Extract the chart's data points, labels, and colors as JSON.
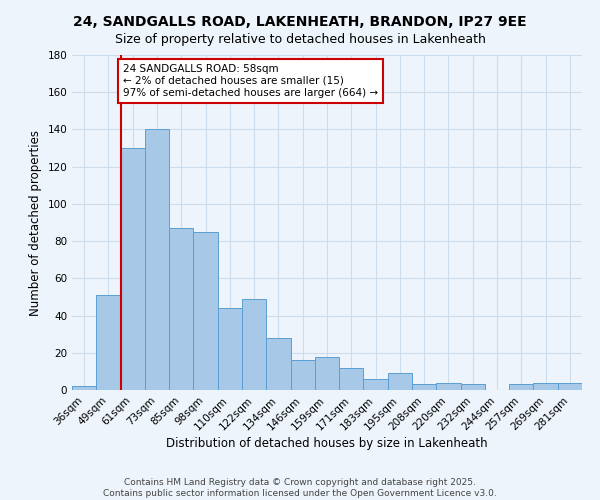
{
  "title": "24, SANDGALLS ROAD, LAKENHEATH, BRANDON, IP27 9EE",
  "subtitle": "Size of property relative to detached houses in Lakenheath",
  "xlabel": "Distribution of detached houses by size in Lakenheath",
  "ylabel": "Number of detached properties",
  "categories": [
    "36sqm",
    "49sqm",
    "61sqm",
    "73sqm",
    "85sqm",
    "98sqm",
    "110sqm",
    "122sqm",
    "134sqm",
    "146sqm",
    "159sqm",
    "171sqm",
    "183sqm",
    "195sqm",
    "208sqm",
    "220sqm",
    "232sqm",
    "244sqm",
    "257sqm",
    "269sqm",
    "281sqm"
  ],
  "values": [
    2,
    51,
    130,
    140,
    87,
    85,
    44,
    49,
    28,
    16,
    18,
    12,
    6,
    9,
    3,
    4,
    3,
    0,
    3,
    4,
    4
  ],
  "bar_color": "#a8c8e8",
  "bar_edge_color": "#5a9fd4",
  "grid_color": "#ccddee",
  "background_color": "#eef4fb",
  "ylim": [
    0,
    180
  ],
  "yticks": [
    0,
    20,
    40,
    60,
    80,
    100,
    120,
    140,
    160,
    180
  ],
  "vline_x_index": 2,
  "vline_color": "#cc0000",
  "annotation_text": "24 SANDGALLS ROAD: 58sqm\n← 2% of detached houses are smaller (15)\n97% of semi-detached houses are larger (664) →",
  "annotation_box_color": "#ffffff",
  "annotation_edge_color": "#cc0000",
  "footer1": "Contains HM Land Registry data © Crown copyright and database right 2025.",
  "footer2": "Contains public sector information licensed under the Open Government Licence v3.0.",
  "title_fontsize": 10,
  "subtitle_fontsize": 9,
  "axis_label_fontsize": 8.5,
  "tick_fontsize": 7.5,
  "annotation_fontsize": 7.5,
  "footer_fontsize": 6.5
}
